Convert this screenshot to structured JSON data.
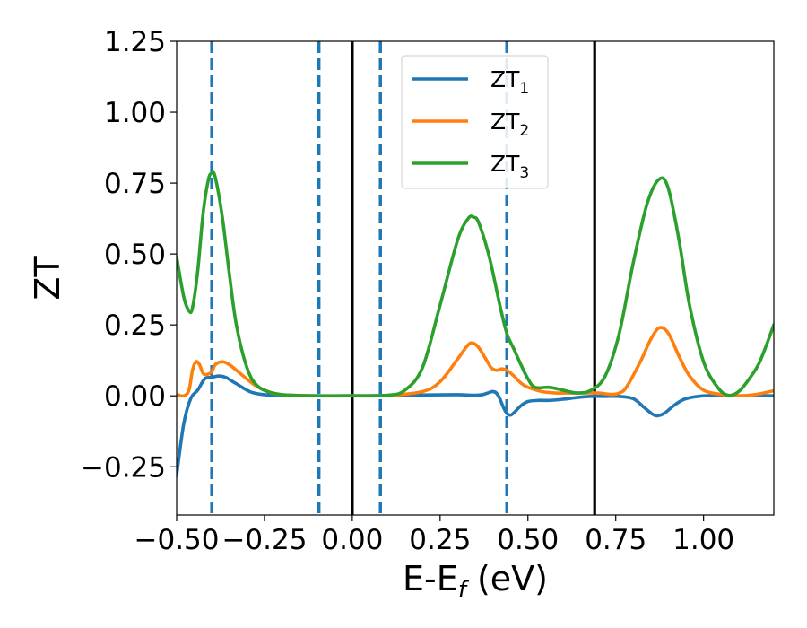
{
  "chart_data": {
    "type": "line",
    "title": "",
    "xlabel": "E-E",
    "xlabel_sub": "f",
    "xlabel_unit": " (eV)",
    "ylabel": "ZT",
    "xlim": [
      -0.5,
      1.2
    ],
    "ylim": [
      -0.42,
      1.25
    ],
    "grid": false,
    "legend_position": "top-center",
    "xticks": [
      -0.5,
      -0.25,
      0.0,
      0.25,
      0.5,
      0.75,
      1.0
    ],
    "xtick_labels": [
      "−0.50",
      "−0.25",
      "0.00",
      "0.25",
      "0.50",
      "0.75",
      "1.00"
    ],
    "yticks": [
      -0.25,
      0.0,
      0.25,
      0.5,
      0.75,
      1.0,
      1.25
    ],
    "ytick_labels": [
      "−0.25",
      "0.00",
      "0.25",
      "0.50",
      "0.75",
      "1.00",
      "1.25"
    ],
    "vlines": [
      {
        "x": -0.4,
        "style": "dashed",
        "color": "#1f77b4"
      },
      {
        "x": -0.095,
        "style": "dashed",
        "color": "#1f77b4"
      },
      {
        "x": 0.0,
        "style": "solid",
        "color": "#000000"
      },
      {
        "x": 0.08,
        "style": "dashed",
        "color": "#1f77b4"
      },
      {
        "x": 0.44,
        "style": "dashed",
        "color": "#1f77b4"
      },
      {
        "x": 0.69,
        "style": "solid",
        "color": "#000000"
      }
    ],
    "series": [
      {
        "name": "ZT",
        "name_sub": "1",
        "color": "#1f77b4",
        "points": [
          [
            -0.5,
            -0.28
          ],
          [
            -0.48,
            -0.1
          ],
          [
            -0.46,
            -0.01
          ],
          [
            -0.44,
            0.02
          ],
          [
            -0.42,
            0.06
          ],
          [
            -0.4,
            0.065
          ],
          [
            -0.38,
            0.07
          ],
          [
            -0.36,
            0.065
          ],
          [
            -0.34,
            0.05
          ],
          [
            -0.32,
            0.035
          ],
          [
            -0.3,
            0.02
          ],
          [
            -0.28,
            0.01
          ],
          [
            -0.25,
            0.004
          ],
          [
            -0.2,
            0.001
          ],
          [
            -0.1,
            0.0
          ],
          [
            0.0,
            0.0
          ],
          [
            0.1,
            0.001
          ],
          [
            0.2,
            0.003
          ],
          [
            0.3,
            0.004
          ],
          [
            0.34,
            0.002
          ],
          [
            0.37,
            0.004
          ],
          [
            0.39,
            0.012
          ],
          [
            0.4,
            0.015
          ],
          [
            0.41,
            0.01
          ],
          [
            0.42,
            -0.01
          ],
          [
            0.43,
            -0.04
          ],
          [
            0.44,
            -0.062
          ],
          [
            0.45,
            -0.068
          ],
          [
            0.46,
            -0.06
          ],
          [
            0.48,
            -0.035
          ],
          [
            0.5,
            -0.02
          ],
          [
            0.53,
            -0.016
          ],
          [
            0.56,
            -0.016
          ],
          [
            0.6,
            -0.012
          ],
          [
            0.64,
            -0.006
          ],
          [
            0.68,
            -0.002
          ],
          [
            0.72,
            -0.002
          ],
          [
            0.76,
            -0.002
          ],
          [
            0.8,
            -0.01
          ],
          [
            0.83,
            -0.04
          ],
          [
            0.855,
            -0.065
          ],
          [
            0.87,
            -0.07
          ],
          [
            0.89,
            -0.06
          ],
          [
            0.92,
            -0.03
          ],
          [
            0.95,
            -0.01
          ],
          [
            1.0,
            0.0
          ],
          [
            1.05,
            0.0
          ],
          [
            1.1,
            0.0
          ],
          [
            1.2,
            0.0
          ]
        ]
      },
      {
        "name": "ZT",
        "name_sub": "2",
        "color": "#ff7f0e",
        "points": [
          [
            -0.5,
            0.005
          ],
          [
            -0.48,
            0.0
          ],
          [
            -0.465,
            0.02
          ],
          [
            -0.455,
            0.09
          ],
          [
            -0.445,
            0.12
          ],
          [
            -0.435,
            0.11
          ],
          [
            -0.425,
            0.08
          ],
          [
            -0.415,
            0.075
          ],
          [
            -0.4,
            0.085
          ],
          [
            -0.39,
            0.11
          ],
          [
            -0.37,
            0.12
          ],
          [
            -0.35,
            0.11
          ],
          [
            -0.32,
            0.08
          ],
          [
            -0.28,
            0.04
          ],
          [
            -0.24,
            0.015
          ],
          [
            -0.2,
            0.004
          ],
          [
            -0.1,
            0.0
          ],
          [
            0.0,
            0.0
          ],
          [
            0.1,
            0.001
          ],
          [
            0.2,
            0.015
          ],
          [
            0.25,
            0.05
          ],
          [
            0.3,
            0.13
          ],
          [
            0.33,
            0.18
          ],
          [
            0.345,
            0.185
          ],
          [
            0.36,
            0.17
          ],
          [
            0.38,
            0.13
          ],
          [
            0.395,
            0.1
          ],
          [
            0.41,
            0.09
          ],
          [
            0.425,
            0.095
          ],
          [
            0.44,
            0.09
          ],
          [
            0.46,
            0.07
          ],
          [
            0.48,
            0.045
          ],
          [
            0.5,
            0.03
          ],
          [
            0.54,
            0.015
          ],
          [
            0.58,
            0.01
          ],
          [
            0.62,
            0.01
          ],
          [
            0.66,
            0.01
          ],
          [
            0.7,
            0.01
          ],
          [
            0.74,
            0.005
          ],
          [
            0.76,
            0.01
          ],
          [
            0.78,
            0.03
          ],
          [
            0.82,
            0.12
          ],
          [
            0.85,
            0.2
          ],
          [
            0.875,
            0.24
          ],
          [
            0.9,
            0.22
          ],
          [
            0.93,
            0.14
          ],
          [
            0.96,
            0.07
          ],
          [
            1.0,
            0.02
          ],
          [
            1.05,
            0.005
          ],
          [
            1.1,
            0.0
          ],
          [
            1.15,
            0.005
          ],
          [
            1.2,
            0.018
          ]
        ]
      },
      {
        "name": "ZT",
        "name_sub": "3",
        "color": "#2ca02c",
        "points": [
          [
            -0.5,
            0.49
          ],
          [
            -0.48,
            0.35
          ],
          [
            -0.465,
            0.3
          ],
          [
            -0.455,
            0.31
          ],
          [
            -0.44,
            0.44
          ],
          [
            -0.425,
            0.64
          ],
          [
            -0.41,
            0.76
          ],
          [
            -0.4,
            0.785
          ],
          [
            -0.39,
            0.77
          ],
          [
            -0.37,
            0.63
          ],
          [
            -0.35,
            0.43
          ],
          [
            -0.33,
            0.25
          ],
          [
            -0.3,
            0.1
          ],
          [
            -0.27,
            0.035
          ],
          [
            -0.22,
            0.008
          ],
          [
            -0.15,
            0.001
          ],
          [
            0.0,
            0.0
          ],
          [
            0.1,
            0.002
          ],
          [
            0.15,
            0.02
          ],
          [
            0.2,
            0.1
          ],
          [
            0.25,
            0.32
          ],
          [
            0.3,
            0.55
          ],
          [
            0.33,
            0.625
          ],
          [
            0.345,
            0.63
          ],
          [
            0.36,
            0.61
          ],
          [
            0.39,
            0.49
          ],
          [
            0.42,
            0.32
          ],
          [
            0.44,
            0.22
          ],
          [
            0.46,
            0.165
          ],
          [
            0.48,
            0.11
          ],
          [
            0.5,
            0.06
          ],
          [
            0.52,
            0.03
          ],
          [
            0.56,
            0.03
          ],
          [
            0.6,
            0.02
          ],
          [
            0.64,
            0.01
          ],
          [
            0.68,
            0.02
          ],
          [
            0.72,
            0.07
          ],
          [
            0.76,
            0.22
          ],
          [
            0.8,
            0.47
          ],
          [
            0.84,
            0.68
          ],
          [
            0.875,
            0.765
          ],
          [
            0.9,
            0.73
          ],
          [
            0.93,
            0.55
          ],
          [
            0.96,
            0.32
          ],
          [
            1.0,
            0.12
          ],
          [
            1.04,
            0.03
          ],
          [
            1.07,
            0.002
          ],
          [
            1.1,
            0.015
          ],
          [
            1.13,
            0.06
          ],
          [
            1.16,
            0.12
          ],
          [
            1.2,
            0.25
          ]
        ]
      }
    ]
  }
}
